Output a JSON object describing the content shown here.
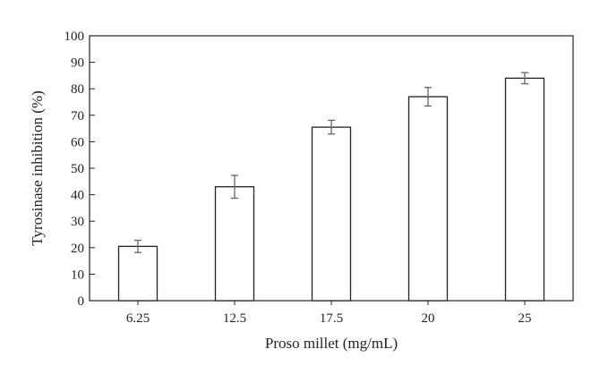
{
  "chart_data": {
    "type": "bar",
    "xlabel": "Proso millet (mg/mL)",
    "ylabel": "Tyrosinase inhibition (%)",
    "categories": [
      "6.25",
      "12.5",
      "17.5",
      "20",
      "25"
    ],
    "values": [
      20.5,
      43,
      65.5,
      77,
      84
    ],
    "errors": [
      2.3,
      4.3,
      2.6,
      3.5,
      2.1
    ],
    "ylim": [
      0,
      100
    ],
    "yticks": [
      "0",
      "10",
      "20",
      "30",
      "40",
      "50",
      "60",
      "70",
      "80",
      "90",
      "100"
    ],
    "grid": false,
    "colors": {
      "bar_fill": "#ffffff",
      "bar_stroke": "#222222",
      "error_bar": "#666666",
      "axis": "#222222"
    }
  }
}
